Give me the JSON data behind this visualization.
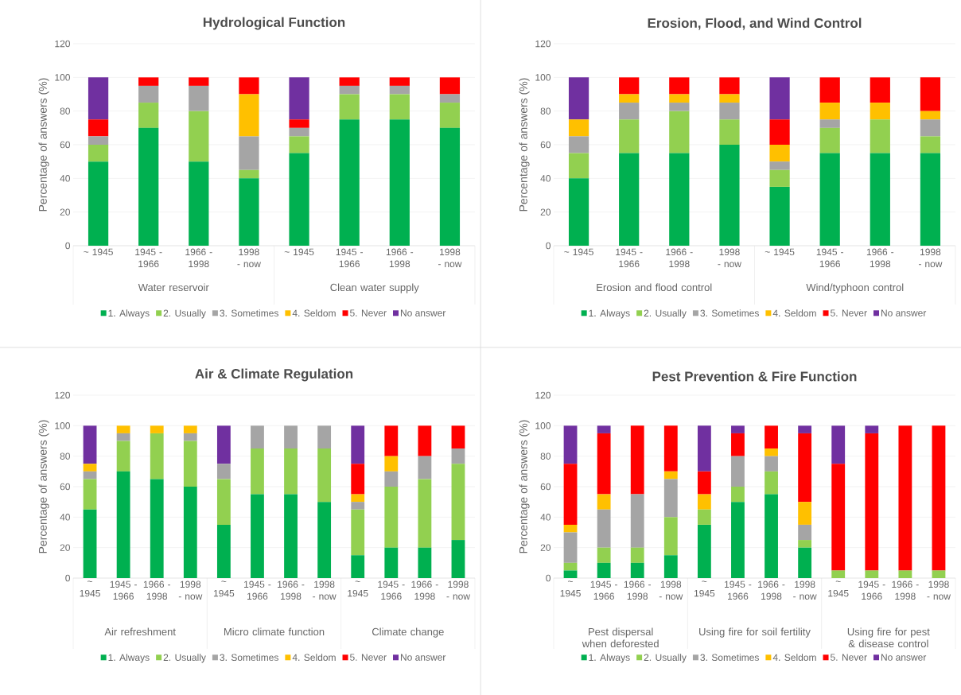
{
  "chart_data": [
    {
      "type": "bar",
      "stacked": true,
      "title": "Hydrological Function",
      "ylabel": "Percentage of  answers (%)",
      "categories": [
        "~ 1945",
        "1945 - 1966",
        "1966 - 1998",
        "1998 - now",
        "~ 1945",
        "1945 - 1966",
        "1966 - 1998",
        "1998 - now"
      ],
      "annotations": [
        "Water reservoir",
        "Clean water supply"
      ],
      "series": [
        {
          "name": "1. Always",
          "color": "#00b050",
          "values": [
            50,
            70,
            50,
            40,
            55,
            75,
            75,
            70
          ]
        },
        {
          "name": "2. Usually",
          "color": "#92d050",
          "values": [
            10,
            15,
            30,
            5,
            10,
            15,
            15,
            15
          ]
        },
        {
          "name": "3. Sometimes",
          "color": "#a5a5a5",
          "values": [
            5,
            10,
            15,
            20,
            5,
            5,
            5,
            5
          ]
        },
        {
          "name": "4. Seldom",
          "color": "#ffc000",
          "values": [
            0,
            0,
            0,
            25,
            0,
            0,
            0,
            0
          ]
        },
        {
          "name": "5. Never",
          "color": "#ff0000",
          "values": [
            10,
            5,
            5,
            10,
            5,
            5,
            5,
            10
          ]
        },
        {
          "name": "No answer",
          "color": "#7030a0",
          "values": [
            25,
            0,
            0,
            0,
            25,
            0,
            0,
            0
          ]
        }
      ],
      "ylim": [
        0,
        120
      ],
      "yticks": [
        0,
        20,
        40,
        60,
        80,
        100,
        120
      ],
      "grid": "y",
      "legend": "bottom"
    },
    {
      "type": "bar",
      "stacked": true,
      "title": "Erosion, Flood, and Wind Control",
      "ylabel": "Percentage of  answers (%)",
      "categories": [
        "~ 1945",
        "1945 - 1966",
        "1966 - 1998",
        "1998 - now",
        "~ 1945",
        "1945 - 1966",
        "1966 - 1998",
        "1998 - now"
      ],
      "annotations": [
        "Erosion and flood control",
        "Wind/typhoon control"
      ],
      "series": [
        {
          "name": "1. Always",
          "color": "#00b050",
          "values": [
            40,
            55,
            55,
            60,
            35,
            55,
            55,
            55
          ]
        },
        {
          "name": "2. Usually",
          "color": "#92d050",
          "values": [
            15,
            20,
            25,
            15,
            10,
            15,
            20,
            10
          ]
        },
        {
          "name": "3. Sometimes",
          "color": "#a5a5a5",
          "values": [
            10,
            10,
            5,
            10,
            5,
            5,
            0,
            10
          ]
        },
        {
          "name": "4. Seldom",
          "color": "#ffc000",
          "values": [
            10,
            5,
            5,
            5,
            10,
            10,
            10,
            5
          ]
        },
        {
          "name": "5. Never",
          "color": "#ff0000",
          "values": [
            0,
            10,
            10,
            10,
            15,
            15,
            15,
            20
          ]
        },
        {
          "name": "No answer",
          "color": "#7030a0",
          "values": [
            25,
            0,
            0,
            0,
            25,
            0,
            0,
            0
          ]
        }
      ],
      "ylim": [
        0,
        120
      ],
      "yticks": [
        0,
        20,
        40,
        60,
        80,
        100,
        120
      ],
      "grid": "y",
      "legend": "bottom"
    },
    {
      "type": "bar",
      "stacked": true,
      "title": "Air & Climate Regulation",
      "ylabel": "Percentage of  answers (%)",
      "categories": [
        "~ 1945",
        "1945 - 1966",
        "1966 - 1998",
        "1998 - now",
        "~ 1945",
        "1945 - 1966",
        "1966 - 1998",
        "1998 - now",
        "~ 1945",
        "1945 - 1966",
        "1966 - 1998",
        "1998 - now"
      ],
      "annotations": [
        "Air refreshment",
        "Micro climate function",
        "Climate change"
      ],
      "series": [
        {
          "name": "1. Always",
          "color": "#00b050",
          "values": [
            45,
            70,
            65,
            60,
            35,
            55,
            55,
            50,
            15,
            20,
            20,
            25
          ]
        },
        {
          "name": "2. Usually",
          "color": "#92d050",
          "values": [
            20,
            20,
            30,
            30,
            30,
            30,
            30,
            35,
            30,
            40,
            45,
            50
          ]
        },
        {
          "name": "3. Sometimes",
          "color": "#a5a5a5",
          "values": [
            5,
            5,
            0,
            5,
            10,
            15,
            15,
            15,
            5,
            10,
            15,
            10
          ]
        },
        {
          "name": "4. Seldom",
          "color": "#ffc000",
          "values": [
            5,
            5,
            5,
            5,
            0,
            0,
            0,
            0,
            5,
            10,
            0,
            0
          ]
        },
        {
          "name": "5. Never",
          "color": "#ff0000",
          "values": [
            0,
            0,
            0,
            0,
            0,
            0,
            0,
            0,
            20,
            20,
            20,
            15
          ]
        },
        {
          "name": "No answer",
          "color": "#7030a0",
          "values": [
            25,
            0,
            0,
            0,
            25,
            0,
            0,
            0,
            25,
            0,
            0,
            0
          ]
        }
      ],
      "ylim": [
        0,
        120
      ],
      "yticks": [
        0,
        20,
        40,
        60,
        80,
        100,
        120
      ],
      "grid": "y",
      "legend": "bottom"
    },
    {
      "type": "bar",
      "stacked": true,
      "title": "Pest Prevention & Fire Function",
      "ylabel": "Percentage of  answers (%)",
      "categories": [
        "~ 1945",
        "1945 - 1966",
        "1966 - 1998",
        "1998 - now",
        "~ 1945",
        "1945 - 1966",
        "1966 - 1998",
        "1998 - now",
        "~ 1945",
        "1945 - 1966",
        "1966 - 1998",
        "1998 - now"
      ],
      "annotations": [
        "Pest dispersal when deforested",
        "Using fire for soil fertility",
        "Using fire for pest & disease control"
      ],
      "series": [
        {
          "name": "1. Always",
          "color": "#00b050",
          "values": [
            5,
            10,
            10,
            15,
            35,
            50,
            55,
            20,
            0,
            0,
            0,
            0
          ]
        },
        {
          "name": "2. Usually",
          "color": "#92d050",
          "values": [
            5,
            10,
            10,
            25,
            10,
            10,
            15,
            5,
            5,
            5,
            5,
            5
          ]
        },
        {
          "name": "3. Sometimes",
          "color": "#a5a5a5",
          "values": [
            20,
            25,
            35,
            25,
            0,
            20,
            10,
            10,
            0,
            0,
            0,
            0
          ]
        },
        {
          "name": "4. Seldom",
          "color": "#ffc000",
          "values": [
            5,
            10,
            0,
            5,
            10,
            0,
            5,
            15,
            0,
            0,
            0,
            0
          ]
        },
        {
          "name": "5. Never",
          "color": "#ff0000",
          "values": [
            40,
            40,
            45,
            30,
            15,
            15,
            15,
            45,
            70,
            90,
            95,
            95
          ]
        },
        {
          "name": "No answer",
          "color": "#7030a0",
          "values": [
            25,
            5,
            0,
            0,
            30,
            5,
            0,
            5,
            25,
            5,
            0,
            0
          ]
        }
      ],
      "ylim": [
        0,
        120
      ],
      "yticks": [
        0,
        20,
        40,
        60,
        80,
        100,
        120
      ],
      "grid": "y",
      "legend": "bottom"
    }
  ]
}
